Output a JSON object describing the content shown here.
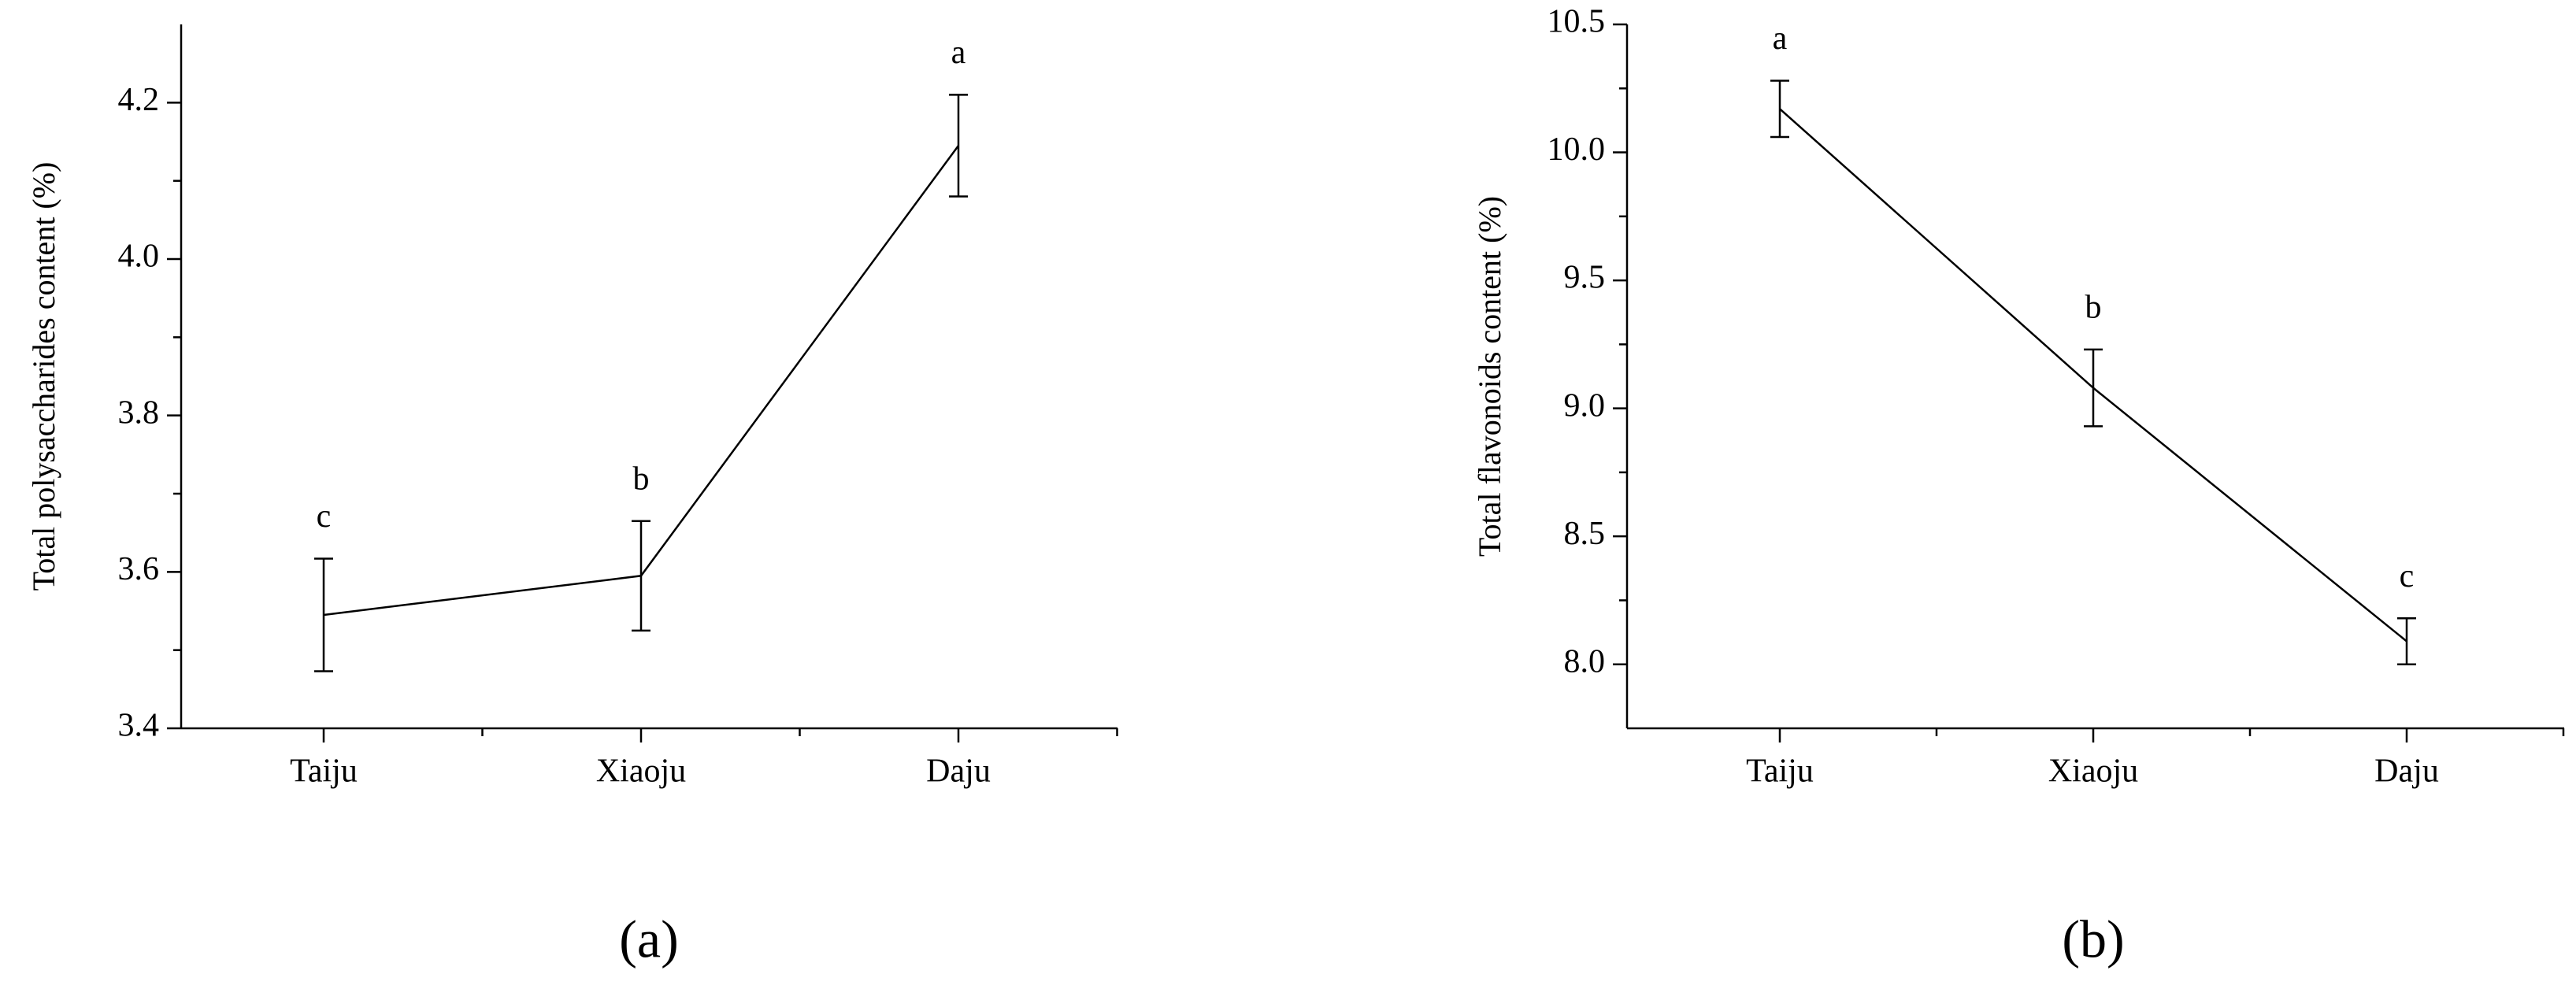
{
  "chart_data": [
    {
      "type": "line",
      "panel_label": "(a)",
      "ylabel": "Total polysaccharides content (%)",
      "categories": [
        "Taiju",
        "Xiaoju",
        "Daju"
      ],
      "values": [
        3.545,
        3.595,
        4.145
      ],
      "errors": [
        0.072,
        0.07,
        0.065
      ],
      "letters": [
        "c",
        "b",
        "a"
      ],
      "color": "#000000",
      "ylim": [
        3.4,
        4.3
      ],
      "yticks": [
        {
          "value": 3.4,
          "label": "3.4"
        },
        3.6,
        3.8,
        {
          "value": 4.0,
          "label": "4.0"
        },
        4.2
      ]
    },
    {
      "type": "line",
      "panel_label": "(b)",
      "ylabel": "Total flavonoids content (%)",
      "categories": [
        "Taiju",
        "Xiaoju",
        "Daju"
      ],
      "values": [
        10.17,
        9.08,
        8.09
      ],
      "errors": [
        0.11,
        0.15,
        0.09
      ],
      "letters": [
        "a",
        "b",
        "c"
      ],
      "color": "#000000",
      "ylim": [
        7.75,
        10.5
      ],
      "yticks": [
        {
          "value": 8.0,
          "label": "8.0"
        },
        8.5,
        {
          "value": 9.0,
          "label": "9.0"
        },
        9.5,
        {
          "value": 10.0,
          "label": "10.0"
        },
        10.5
      ]
    }
  ]
}
